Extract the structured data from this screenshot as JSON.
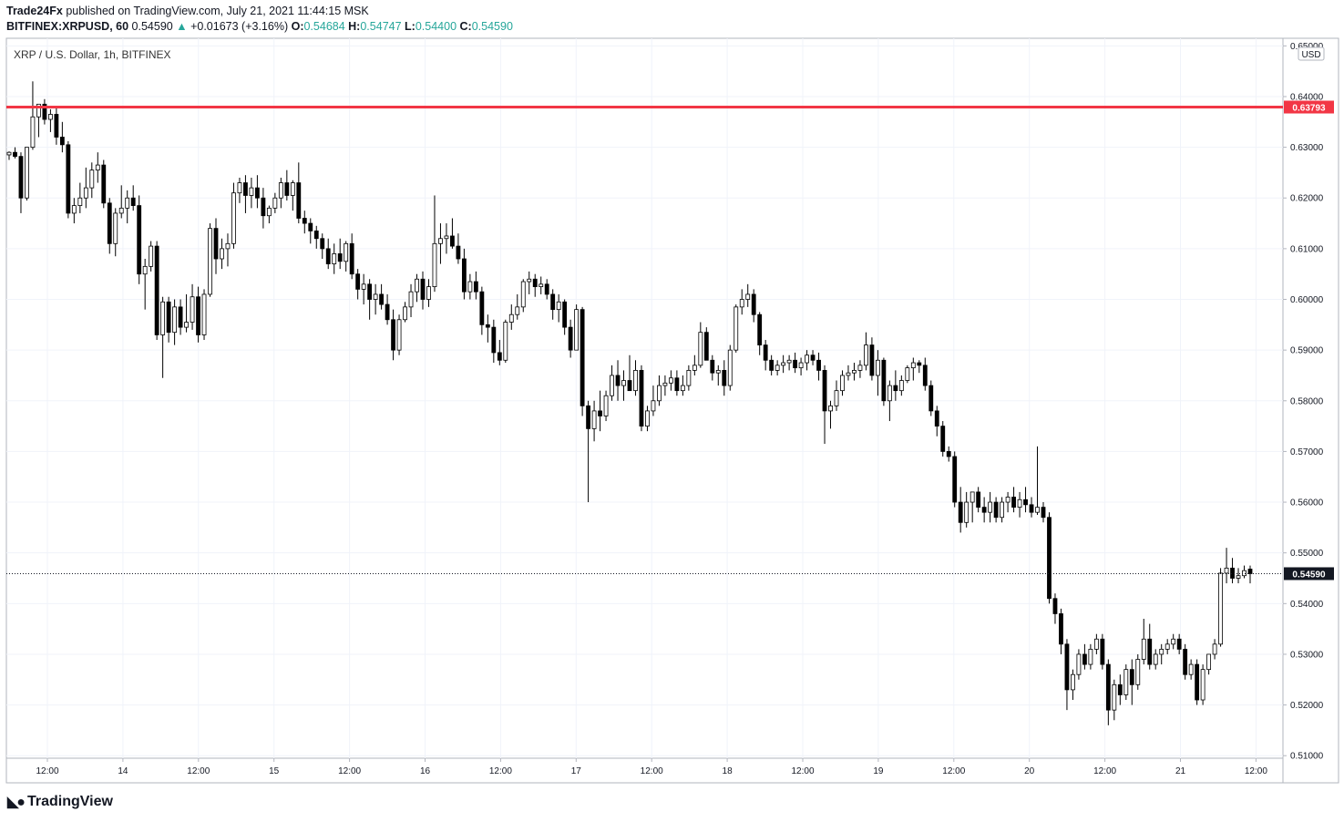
{
  "header": {
    "publisher": "Trade24Fx",
    "published_text": "published on TradingView.com, July 21, 2021 11:44:15 MSK",
    "symbol": "BITFINEX:XRPUSD, 60",
    "last": "0.54590",
    "change": "+0.01673 (+3.16%)",
    "o_label": "O:",
    "o_value": "0.54684",
    "h_label": "H:",
    "h_value": "0.54747",
    "l_label": "L:",
    "l_value": "0.54400",
    "c_label": "C:",
    "c_value": "0.54590"
  },
  "chart_legend": "XRP / U.S. Dollar, 1h, BITFINEX",
  "currency_label": "USD",
  "footer": {
    "brand": "TradingView"
  },
  "colors": {
    "level_line": "#f23645",
    "last_price_bg": "#131722",
    "grid": "#f0f3fa",
    "up_candle": "#ffffff",
    "down_candle": "#000000"
  },
  "chart_data": {
    "type": "candlestick",
    "y_axis": {
      "ylim": [
        0.5095,
        0.6515
      ],
      "ticks": [
        "0.65000",
        "0.64000",
        "0.63000",
        "0.62000",
        "0.61000",
        "0.60000",
        "0.59000",
        "0.58000",
        "0.57000",
        "0.56000",
        "0.55000",
        "0.54000",
        "0.53000",
        "0.52000",
        "0.51000"
      ]
    },
    "x_axis": {
      "tick_labels": [
        "12:00",
        "14",
        "12:00",
        "15",
        "12:00",
        "16",
        "12:00",
        "17",
        "12:00",
        "18",
        "12:00",
        "19",
        "12:00",
        "20",
        "12:00",
        "21",
        "12:00"
      ]
    },
    "horizontal_level": {
      "value": 0.63793,
      "label": "0.63793"
    },
    "last_price": {
      "value": 0.5459,
      "label": "0.54590"
    },
    "candles": [
      [
        0.6285,
        0.6292,
        0.6275,
        0.629
      ],
      [
        0.629,
        0.63,
        0.6278,
        0.6282
      ],
      [
        0.6282,
        0.629,
        0.617,
        0.62
      ],
      [
        0.62,
        0.63,
        0.6195,
        0.63
      ],
      [
        0.63,
        0.643,
        0.6295,
        0.636
      ],
      [
        0.636,
        0.6385,
        0.632,
        0.6385
      ],
      [
        0.6385,
        0.6395,
        0.6345,
        0.6355
      ],
      [
        0.6355,
        0.6375,
        0.633,
        0.6365
      ],
      [
        0.6365,
        0.638,
        0.6305,
        0.632
      ],
      [
        0.632,
        0.635,
        0.629,
        0.6305
      ],
      [
        0.6305,
        0.6312,
        0.616,
        0.617
      ],
      [
        0.617,
        0.62,
        0.615,
        0.6185
      ],
      [
        0.6185,
        0.623,
        0.617,
        0.62
      ],
      [
        0.62,
        0.626,
        0.618,
        0.622
      ],
      [
        0.622,
        0.627,
        0.62,
        0.6255
      ],
      [
        0.6255,
        0.629,
        0.623,
        0.6265
      ],
      [
        0.6265,
        0.6275,
        0.618,
        0.619
      ],
      [
        0.619,
        0.62,
        0.609,
        0.611
      ],
      [
        0.611,
        0.618,
        0.6085,
        0.617
      ],
      [
        0.617,
        0.6225,
        0.616,
        0.618
      ],
      [
        0.618,
        0.6215,
        0.615,
        0.62
      ],
      [
        0.62,
        0.6225,
        0.6175,
        0.6185
      ],
      [
        0.6185,
        0.6205,
        0.603,
        0.605
      ],
      [
        0.605,
        0.608,
        0.598,
        0.6065
      ],
      [
        0.6065,
        0.6115,
        0.6055,
        0.6105
      ],
      [
        0.6105,
        0.6115,
        0.592,
        0.593
      ],
      [
        0.593,
        0.6005,
        0.5845,
        0.5995
      ],
      [
        0.5995,
        0.6005,
        0.5915,
        0.5935
      ],
      [
        0.5935,
        0.6,
        0.591,
        0.5985
      ],
      [
        0.5985,
        0.6,
        0.593,
        0.5945
      ],
      [
        0.5945,
        0.601,
        0.5935,
        0.5955
      ],
      [
        0.5955,
        0.603,
        0.594,
        0.6005
      ],
      [
        0.6005,
        0.6025,
        0.5915,
        0.593
      ],
      [
        0.593,
        0.602,
        0.592,
        0.601
      ],
      [
        0.601,
        0.615,
        0.6005,
        0.614
      ],
      [
        0.614,
        0.616,
        0.605,
        0.608
      ],
      [
        0.608,
        0.612,
        0.606,
        0.61
      ],
      [
        0.61,
        0.613,
        0.6065,
        0.611
      ],
      [
        0.611,
        0.623,
        0.61,
        0.621
      ],
      [
        0.621,
        0.624,
        0.619,
        0.623
      ],
      [
        0.623,
        0.6245,
        0.617,
        0.6205
      ],
      [
        0.6205,
        0.624,
        0.618,
        0.622
      ],
      [
        0.622,
        0.6245,
        0.618,
        0.62
      ],
      [
        0.62,
        0.622,
        0.614,
        0.6165
      ],
      [
        0.6165,
        0.6185,
        0.615,
        0.618
      ],
      [
        0.618,
        0.621,
        0.617,
        0.62
      ],
      [
        0.62,
        0.624,
        0.618,
        0.623
      ],
      [
        0.623,
        0.6255,
        0.6195,
        0.6205
      ],
      [
        0.6205,
        0.6235,
        0.6175,
        0.623
      ],
      [
        0.623,
        0.627,
        0.615,
        0.616
      ],
      [
        0.616,
        0.6175,
        0.613,
        0.615
      ],
      [
        0.615,
        0.616,
        0.611,
        0.6135
      ],
      [
        0.6135,
        0.6145,
        0.61,
        0.612
      ],
      [
        0.612,
        0.613,
        0.608,
        0.61
      ],
      [
        0.61,
        0.612,
        0.606,
        0.607
      ],
      [
        0.607,
        0.611,
        0.605,
        0.609
      ],
      [
        0.609,
        0.612,
        0.606,
        0.6075
      ],
      [
        0.6075,
        0.6115,
        0.6055,
        0.611
      ],
      [
        0.611,
        0.613,
        0.604,
        0.605
      ],
      [
        0.605,
        0.606,
        0.6,
        0.602
      ],
      [
        0.602,
        0.605,
        0.599,
        0.603
      ],
      [
        0.603,
        0.604,
        0.596,
        0.6
      ],
      [
        0.6,
        0.603,
        0.597,
        0.601
      ],
      [
        0.601,
        0.603,
        0.598,
        0.599
      ],
      [
        0.599,
        0.601,
        0.595,
        0.596
      ],
      [
        0.596,
        0.598,
        0.588,
        0.59
      ],
      [
        0.59,
        0.597,
        0.589,
        0.596
      ],
      [
        0.596,
        0.5995,
        0.5955,
        0.5985
      ],
      [
        0.5985,
        0.603,
        0.5965,
        0.6015
      ],
      [
        0.6015,
        0.605,
        0.5995,
        0.604
      ],
      [
        0.604,
        0.6055,
        0.598,
        0.6
      ],
      [
        0.6,
        0.604,
        0.5985,
        0.6025
      ],
      [
        0.6025,
        0.6205,
        0.6015,
        0.611
      ],
      [
        0.611,
        0.615,
        0.607,
        0.612
      ],
      [
        0.612,
        0.615,
        0.609,
        0.6125
      ],
      [
        0.6125,
        0.616,
        0.61,
        0.6105
      ],
      [
        0.6105,
        0.613,
        0.607,
        0.608
      ],
      [
        0.608,
        0.61,
        0.6,
        0.6015
      ],
      [
        0.6015,
        0.605,
        0.6,
        0.6035
      ],
      [
        0.6035,
        0.6055,
        0.6,
        0.6015
      ],
      [
        0.6015,
        0.6025,
        0.593,
        0.595
      ],
      [
        0.595,
        0.597,
        0.5915,
        0.5945
      ],
      [
        0.5945,
        0.596,
        0.5875,
        0.5895
      ],
      [
        0.5895,
        0.592,
        0.587,
        0.588
      ],
      [
        0.588,
        0.596,
        0.5875,
        0.5955
      ],
      [
        0.5955,
        0.599,
        0.594,
        0.597
      ],
      [
        0.597,
        0.601,
        0.596,
        0.5985
      ],
      [
        0.5985,
        0.604,
        0.5975,
        0.6035
      ],
      [
        0.6035,
        0.6055,
        0.601,
        0.604
      ],
      [
        0.604,
        0.605,
        0.6005,
        0.6025
      ],
      [
        0.6025,
        0.6045,
        0.601,
        0.603
      ],
      [
        0.603,
        0.604,
        0.6,
        0.601
      ],
      [
        0.601,
        0.602,
        0.596,
        0.598
      ],
      [
        0.598,
        0.601,
        0.5955,
        0.5995
      ],
      [
        0.5995,
        0.6,
        0.593,
        0.5945
      ],
      [
        0.5945,
        0.596,
        0.5885,
        0.59
      ],
      [
        0.59,
        0.599,
        0.59,
        0.598
      ],
      [
        0.598,
        0.5985,
        0.577,
        0.579
      ],
      [
        0.579,
        0.58,
        0.56,
        0.5745
      ],
      [
        0.5745,
        0.58,
        0.572,
        0.578
      ],
      [
        0.578,
        0.582,
        0.574,
        0.577
      ],
      [
        0.577,
        0.582,
        0.576,
        0.581
      ],
      [
        0.581,
        0.587,
        0.58,
        0.585
      ],
      [
        0.585,
        0.588,
        0.58,
        0.583
      ],
      [
        0.583,
        0.586,
        0.58,
        0.584
      ],
      [
        0.584,
        0.589,
        0.582,
        0.582
      ],
      [
        0.582,
        0.588,
        0.581,
        0.586
      ],
      [
        0.586,
        0.587,
        0.574,
        0.575
      ],
      [
        0.575,
        0.579,
        0.574,
        0.578
      ],
      [
        0.578,
        0.583,
        0.577,
        0.58
      ],
      [
        0.58,
        0.585,
        0.579,
        0.583
      ],
      [
        0.583,
        0.585,
        0.581,
        0.5835
      ],
      [
        0.5835,
        0.586,
        0.582,
        0.5845
      ],
      [
        0.5845,
        0.586,
        0.581,
        0.582
      ],
      [
        0.582,
        0.585,
        0.581,
        0.583
      ],
      [
        0.583,
        0.587,
        0.582,
        0.586
      ],
      [
        0.586,
        0.589,
        0.585,
        0.587
      ],
      [
        0.587,
        0.5955,
        0.5865,
        0.5935
      ],
      [
        0.5935,
        0.5945,
        0.588,
        0.588
      ],
      [
        0.588,
        0.589,
        0.584,
        0.5855
      ],
      [
        0.5855,
        0.587,
        0.583,
        0.586
      ],
      [
        0.586,
        0.588,
        0.581,
        0.583
      ],
      [
        0.583,
        0.591,
        0.582,
        0.59
      ],
      [
        0.59,
        0.599,
        0.5895,
        0.5985
      ],
      [
        0.5985,
        0.602,
        0.597,
        0.6
      ],
      [
        0.6,
        0.603,
        0.5985,
        0.601
      ],
      [
        0.601,
        0.602,
        0.5955,
        0.597
      ],
      [
        0.597,
        0.5975,
        0.589,
        0.591
      ],
      [
        0.591,
        0.592,
        0.586,
        0.588
      ],
      [
        0.588,
        0.589,
        0.585,
        0.586
      ],
      [
        0.586,
        0.588,
        0.585,
        0.587
      ],
      [
        0.587,
        0.589,
        0.5855,
        0.5875
      ],
      [
        0.5875,
        0.589,
        0.586,
        0.588
      ],
      [
        0.588,
        0.5895,
        0.5855,
        0.5865
      ],
      [
        0.5865,
        0.5885,
        0.585,
        0.5875
      ],
      [
        0.5875,
        0.59,
        0.586,
        0.589
      ],
      [
        0.589,
        0.59,
        0.587,
        0.588
      ],
      [
        0.588,
        0.5895,
        0.584,
        0.586
      ],
      [
        0.586,
        0.587,
        0.5715,
        0.578
      ],
      [
        0.578,
        0.58,
        0.5745,
        0.579
      ],
      [
        0.579,
        0.584,
        0.578,
        0.582
      ],
      [
        0.582,
        0.586,
        0.581,
        0.585
      ],
      [
        0.585,
        0.587,
        0.584,
        0.5855
      ],
      [
        0.5855,
        0.5875,
        0.584,
        0.586
      ],
      [
        0.586,
        0.588,
        0.5845,
        0.587
      ],
      [
        0.587,
        0.5935,
        0.586,
        0.591
      ],
      [
        0.591,
        0.5925,
        0.584,
        0.585
      ],
      [
        0.585,
        0.59,
        0.581,
        0.588
      ],
      [
        0.588,
        0.5885,
        0.579,
        0.58
      ],
      [
        0.58,
        0.584,
        0.576,
        0.583
      ],
      [
        0.583,
        0.586,
        0.58,
        0.582
      ],
      [
        0.582,
        0.585,
        0.581,
        0.584
      ],
      [
        0.584,
        0.587,
        0.5835,
        0.5865
      ],
      [
        0.5865,
        0.5885,
        0.584,
        0.5875
      ],
      [
        0.5875,
        0.588,
        0.5855,
        0.587
      ],
      [
        0.587,
        0.5885,
        0.582,
        0.583
      ],
      [
        0.583,
        0.584,
        0.577,
        0.578
      ],
      [
        0.578,
        0.579,
        0.573,
        0.575
      ],
      [
        0.575,
        0.576,
        0.569,
        0.57
      ],
      [
        0.57,
        0.571,
        0.568,
        0.569
      ],
      [
        0.569,
        0.57,
        0.559,
        0.56
      ],
      [
        0.56,
        0.563,
        0.554,
        0.556
      ],
      [
        0.556,
        0.562,
        0.555,
        0.56
      ],
      [
        0.56,
        0.562,
        0.556,
        0.562
      ],
      [
        0.562,
        0.563,
        0.558,
        0.559
      ],
      [
        0.559,
        0.561,
        0.556,
        0.558
      ],
      [
        0.558,
        0.562,
        0.556,
        0.56
      ],
      [
        0.56,
        0.561,
        0.556,
        0.557
      ],
      [
        0.557,
        0.561,
        0.556,
        0.56
      ],
      [
        0.56,
        0.562,
        0.558,
        0.561
      ],
      [
        0.561,
        0.563,
        0.558,
        0.559
      ],
      [
        0.559,
        0.562,
        0.557,
        0.5605
      ],
      [
        0.5605,
        0.563,
        0.558,
        0.5595
      ],
      [
        0.5595,
        0.561,
        0.557,
        0.558
      ],
      [
        0.558,
        0.571,
        0.5575,
        0.559
      ],
      [
        0.559,
        0.56,
        0.556,
        0.557
      ],
      [
        0.557,
        0.558,
        0.54,
        0.541
      ],
      [
        0.541,
        0.542,
        0.536,
        0.538
      ],
      [
        0.538,
        0.539,
        0.53,
        0.532
      ],
      [
        0.532,
        0.533,
        0.519,
        0.523
      ],
      [
        0.523,
        0.527,
        0.521,
        0.526
      ],
      [
        0.526,
        0.531,
        0.525,
        0.53
      ],
      [
        0.53,
        0.532,
        0.527,
        0.528
      ],
      [
        0.528,
        0.532,
        0.527,
        0.531
      ],
      [
        0.531,
        0.534,
        0.53,
        0.533
      ],
      [
        0.533,
        0.534,
        0.527,
        0.528
      ],
      [
        0.528,
        0.529,
        0.516,
        0.519
      ],
      [
        0.519,
        0.525,
        0.517,
        0.524
      ],
      [
        0.524,
        0.526,
        0.52,
        0.522
      ],
      [
        0.522,
        0.528,
        0.521,
        0.527
      ],
      [
        0.527,
        0.529,
        0.52,
        0.524
      ],
      [
        0.524,
        0.53,
        0.523,
        0.529
      ],
      [
        0.529,
        0.537,
        0.528,
        0.533
      ],
      [
        0.533,
        0.536,
        0.527,
        0.528
      ],
      [
        0.528,
        0.531,
        0.527,
        0.53
      ],
      [
        0.53,
        0.532,
        0.528,
        0.531
      ],
      [
        0.531,
        0.533,
        0.53,
        0.532
      ],
      [
        0.532,
        0.534,
        0.531,
        0.533
      ],
      [
        0.533,
        0.534,
        0.53,
        0.531
      ],
      [
        0.531,
        0.532,
        0.525,
        0.526
      ],
      [
        0.526,
        0.529,
        0.525,
        0.528
      ],
      [
        0.528,
        0.529,
        0.52,
        0.521
      ],
      [
        0.521,
        0.528,
        0.52,
        0.527
      ],
      [
        0.527,
        0.53,
        0.526,
        0.53
      ],
      [
        0.53,
        0.533,
        0.529,
        0.532
      ],
      [
        0.532,
        0.547,
        0.5315,
        0.546
      ],
      [
        0.546,
        0.551,
        0.544,
        0.547
      ],
      [
        0.547,
        0.549,
        0.544,
        0.545
      ],
      [
        0.545,
        0.547,
        0.544,
        0.5455
      ],
      [
        0.5455,
        0.5475,
        0.545,
        0.5465
      ],
      [
        0.5468,
        0.5475,
        0.544,
        0.5459
      ]
    ]
  }
}
